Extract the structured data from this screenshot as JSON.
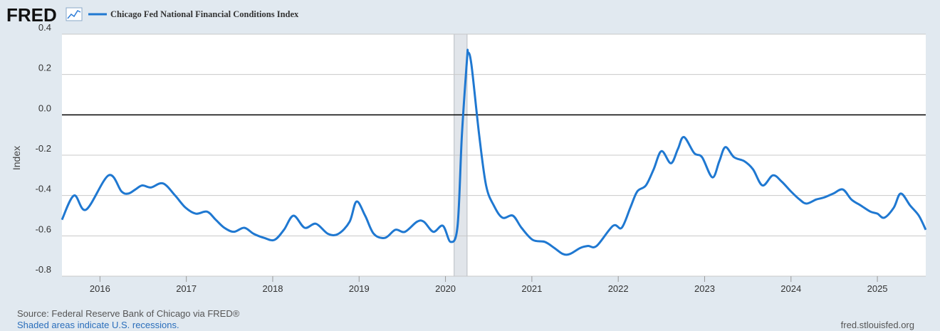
{
  "logo": "FRED",
  "chart_data": {
    "type": "line",
    "ylabel": "Index",
    "xlim": [
      2015.56,
      2025.56
    ],
    "xticks": [
      2016,
      2017,
      2018,
      2019,
      2020,
      2021,
      2022,
      2023,
      2024,
      2025
    ],
    "ylim": [
      -0.8,
      0.4
    ],
    "yticks": [
      0.4,
      0.2,
      {
        "value": 0,
        "label": "0.0"
      },
      -0.2,
      -0.4,
      -0.6,
      -0.8
    ],
    "grid": true,
    "zero_line": true,
    "recessions": [
      {
        "start": 2020.1,
        "end": 2020.25
      }
    ],
    "x": [
      2015.56,
      2015.7,
      2015.84,
      2016.1,
      2016.25,
      2016.33,
      2016.41,
      2016.49,
      2016.59,
      2016.73,
      2016.87,
      2016.99,
      2017.11,
      2017.24,
      2017.34,
      2017.44,
      2017.55,
      2017.67,
      2017.78,
      2017.9,
      2018.02,
      2018.13,
      2018.24,
      2018.37,
      2018.5,
      2018.64,
      2018.76,
      2018.89,
      2018.97,
      2019.07,
      2019.17,
      2019.3,
      2019.42,
      2019.53,
      2019.67,
      2019.75,
      2019.86,
      2019.97,
      2020.06,
      2020.14,
      2020.19,
      2020.25,
      2020.26,
      2020.3,
      2020.39,
      2020.47,
      2020.56,
      2020.66,
      2020.78,
      2020.88,
      2021.01,
      2021.15,
      2021.26,
      2021.36,
      2021.44,
      2021.56,
      2021.65,
      2021.75,
      2021.94,
      2022.04,
      2022.14,
      2022.22,
      2022.32,
      2022.41,
      2022.5,
      2022.61,
      2022.69,
      2022.76,
      2022.88,
      2022.97,
      2023.09,
      2023.17,
      2023.24,
      2023.34,
      2023.46,
      2023.56,
      2023.67,
      2023.79,
      2023.89,
      2024.0,
      2024.1,
      2024.18,
      2024.29,
      2024.38,
      2024.49,
      2024.6,
      2024.7,
      2024.81,
      2024.92,
      2025.0,
      2025.08,
      2025.19,
      2025.27,
      2025.38,
      2025.48,
      2025.56
    ],
    "series": [
      {
        "name": "Chicago Fed National Financial Conditions Index",
        "color": "#1f78d1",
        "values": [
          -0.52,
          -0.4,
          -0.47,
          -0.3,
          -0.38,
          -0.39,
          -0.37,
          -0.35,
          -0.36,
          -0.34,
          -0.4,
          -0.46,
          -0.49,
          -0.48,
          -0.52,
          -0.56,
          -0.58,
          -0.56,
          -0.59,
          -0.61,
          -0.62,
          -0.57,
          -0.5,
          -0.56,
          -0.54,
          -0.59,
          -0.59,
          -0.53,
          -0.43,
          -0.5,
          -0.59,
          -0.61,
          -0.57,
          -0.58,
          -0.53,
          -0.53,
          -0.58,
          -0.55,
          -0.63,
          -0.55,
          -0.1,
          0.28,
          0.31,
          0.25,
          -0.1,
          -0.35,
          -0.45,
          -0.51,
          -0.5,
          -0.56,
          -0.62,
          -0.63,
          -0.66,
          -0.69,
          -0.69,
          -0.66,
          -0.65,
          -0.65,
          -0.55,
          -0.56,
          -0.46,
          -0.38,
          -0.35,
          -0.27,
          -0.18,
          -0.24,
          -0.17,
          -0.11,
          -0.19,
          -0.21,
          -0.31,
          -0.23,
          -0.16,
          -0.21,
          -0.23,
          -0.27,
          -0.35,
          -0.3,
          -0.33,
          -0.38,
          -0.42,
          -0.44,
          -0.42,
          -0.41,
          -0.39,
          -0.37,
          -0.42,
          -0.45,
          -0.48,
          -0.49,
          -0.51,
          -0.46,
          -0.39,
          -0.45,
          -0.5,
          -0.57
        ]
      }
    ],
    "source": "Source: Federal Reserve Bank of Chicago via FRED®",
    "note": "Shaded areas indicate U.S. recessions.",
    "credit": "fred.stlouisfed.org"
  }
}
